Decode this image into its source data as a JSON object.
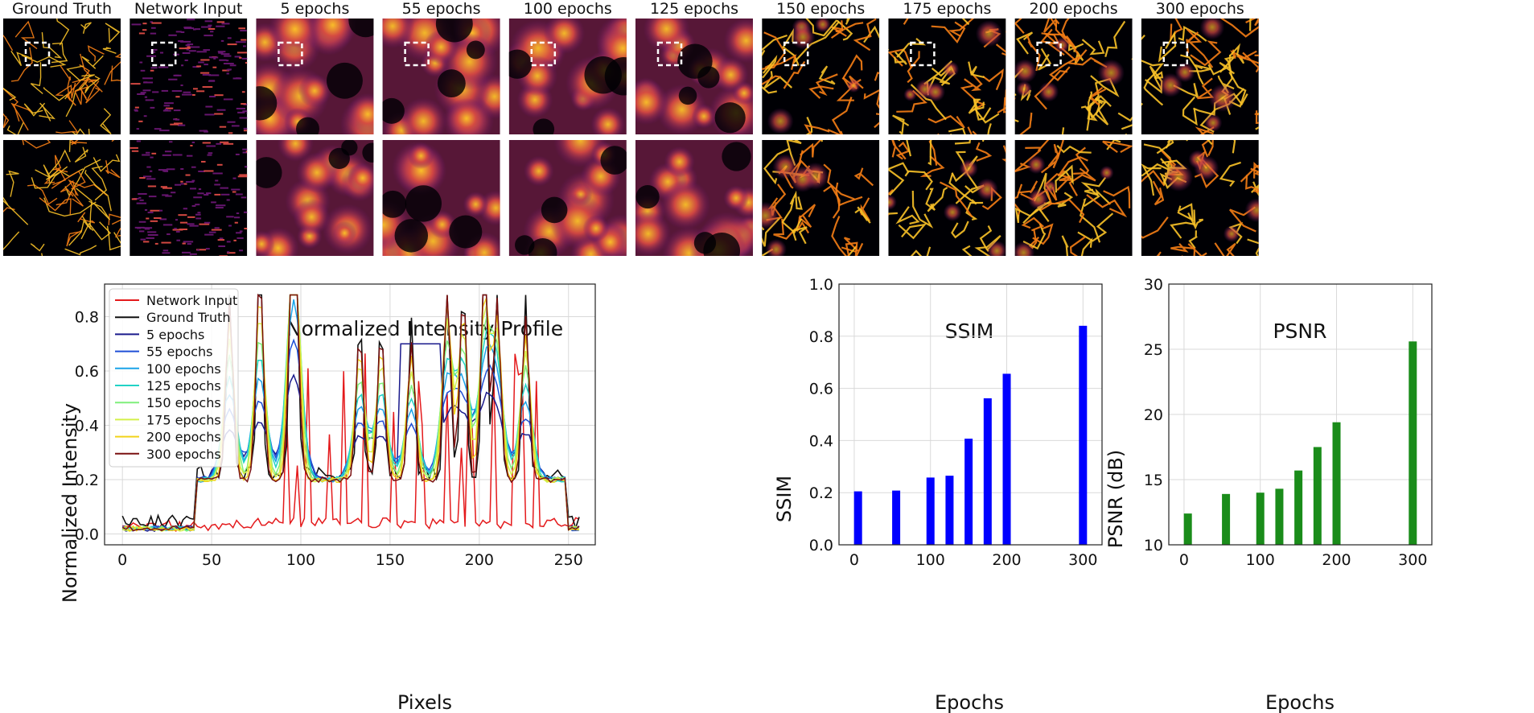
{
  "image_grid": {
    "panels": [
      {
        "label": "Ground Truth",
        "kind": "gt"
      },
      {
        "label": "Network Input",
        "kind": "input"
      },
      {
        "label": "5 epochs",
        "kind": "blur",
        "level": 0
      },
      {
        "label": "55 epochs",
        "kind": "blur",
        "level": 1
      },
      {
        "label": "100 epochs",
        "kind": "blur",
        "level": 2
      },
      {
        "label": "125 epochs",
        "kind": "blur",
        "level": 3
      },
      {
        "label": "150 epochs",
        "kind": "sharp",
        "level": 4
      },
      {
        "label": "175 epochs",
        "kind": "sharp",
        "level": 5
      },
      {
        "label": "200 epochs",
        "kind": "sharp",
        "level": 6
      },
      {
        "label": "300 epochs",
        "kind": "sharp",
        "level": 7
      }
    ],
    "colormap": [
      "#000004",
      "#280b54",
      "#65156e",
      "#9f2a63",
      "#d44842",
      "#f57d15",
      "#fac228",
      "#fcffa4"
    ]
  },
  "chart_data": [
    {
      "type": "line",
      "title": "Normalized Intensity Profile",
      "xlabel": "Pixels",
      "ylabel": "Normalized Intensity",
      "xlim": [
        -10,
        265
      ],
      "ylim": [
        -0.04,
        0.92
      ],
      "xticks": [
        0,
        50,
        100,
        150,
        200,
        250
      ],
      "yticks": [
        0.0,
        0.2,
        0.4,
        0.6,
        0.8
      ],
      "grid": true,
      "legend_position": "upper-left",
      "series": [
        {
          "name": "Network Input",
          "color": "#e41a1c"
        },
        {
          "name": "Ground Truth",
          "color": "#111111"
        },
        {
          "name": "5 epochs",
          "color": "#1a1a8c"
        },
        {
          "name": "55 epochs",
          "color": "#1f4fd6"
        },
        {
          "name": "100 epochs",
          "color": "#1aa3e8"
        },
        {
          "name": "125 epochs",
          "color": "#22d3c6"
        },
        {
          "name": "150 epochs",
          "color": "#7fef7a"
        },
        {
          "name": "175 epochs",
          "color": "#d4f04a"
        },
        {
          "name": "200 epochs",
          "color": "#f2d31a"
        },
        {
          "name": "300 epochs",
          "color": "#7a1010"
        }
      ],
      "peaks": [
        {
          "x": 60,
          "y": 0.74
        },
        {
          "x": 77,
          "y": 0.87
        },
        {
          "x": 95,
          "y": 0.72
        },
        {
          "x": 97,
          "y": 0.85
        },
        {
          "x": 133,
          "y": 0.61
        },
        {
          "x": 145,
          "y": 0.62
        },
        {
          "x": 162,
          "y": 0.58
        },
        {
          "x": 182,
          "y": 0.83
        },
        {
          "x": 191,
          "y": 0.79
        },
        {
          "x": 203,
          "y": 0.88
        },
        {
          "x": 210,
          "y": 0.76
        },
        {
          "x": 226,
          "y": 0.68
        }
      ]
    },
    {
      "type": "bar",
      "title": "SSIM",
      "xlabel": "Epochs",
      "ylabel": "SSIM",
      "color": "#0000ff",
      "x": [
        5,
        55,
        100,
        125,
        150,
        175,
        200,
        300
      ],
      "values": [
        0.205,
        0.208,
        0.258,
        0.265,
        0.407,
        0.562,
        0.656,
        0.84
      ],
      "xticks": [
        0,
        100,
        200,
        300
      ],
      "yticks": [
        0.0,
        0.2,
        0.4,
        0.6,
        0.8,
        1.0
      ],
      "ylim": [
        0,
        1.0
      ],
      "xlim": [
        -20,
        325
      ],
      "grid": true
    },
    {
      "type": "bar",
      "title": "PSNR",
      "xlabel": "Epochs",
      "ylabel": "PSNR (dB)",
      "color": "#1a8c1a",
      "x": [
        5,
        55,
        100,
        125,
        150,
        175,
        200,
        300
      ],
      "values": [
        12.4,
        13.9,
        14.0,
        14.3,
        15.7,
        17.5,
        19.4,
        25.6
      ],
      "xticks": [
        0,
        100,
        200,
        300
      ],
      "yticks": [
        10,
        15,
        20,
        25,
        30
      ],
      "ylim": [
        10,
        30
      ],
      "xlim": [
        -20,
        325
      ],
      "grid": true
    }
  ]
}
